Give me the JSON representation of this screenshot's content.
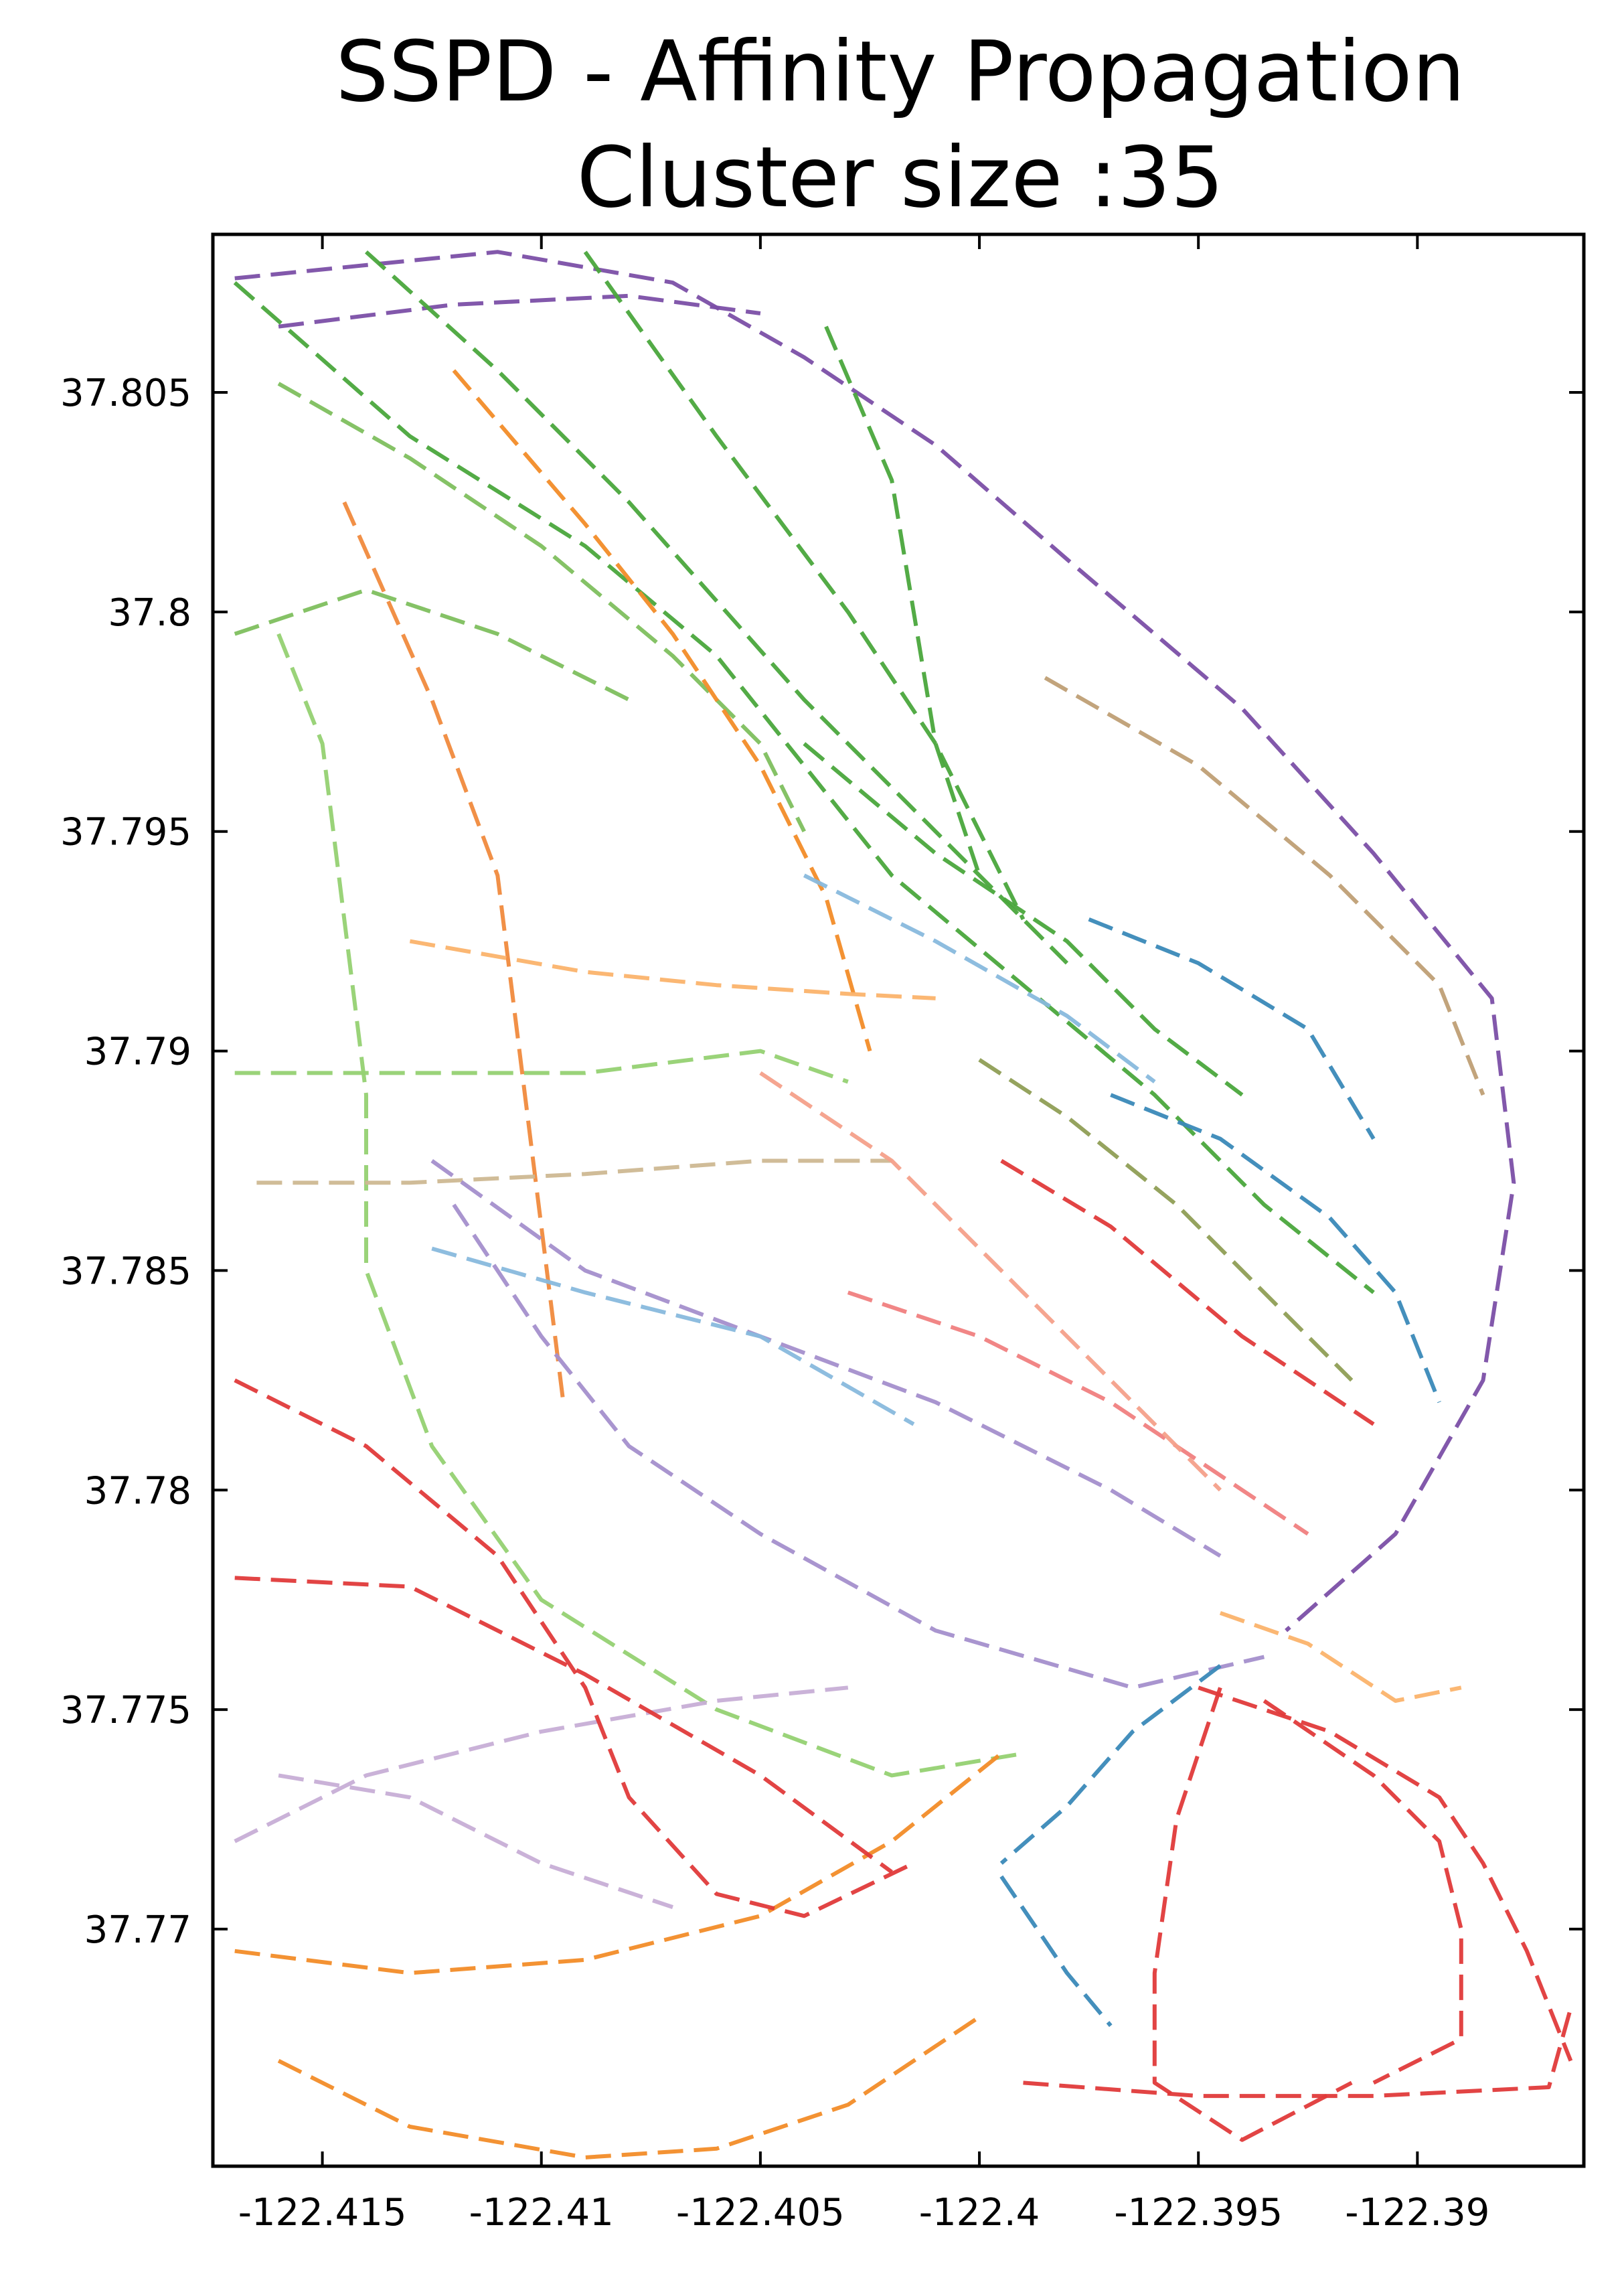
{
  "chart_data": {
    "type": "line",
    "title_line1": "SSPD - Affinity Propagation",
    "title_line2": "Cluster size :35",
    "xlabel": "",
    "ylabel": "",
    "xlim": [
      -122.4175,
      -122.3862
    ],
    "ylim": [
      37.7646,
      37.8086
    ],
    "x_ticks": [
      -122.415,
      -122.41,
      -122.405,
      -122.4,
      -122.395,
      -122.39
    ],
    "x_tick_labels": [
      "-122.415",
      "-122.41",
      "-122.405",
      "-122.4",
      "-122.395",
      "-122.39"
    ],
    "y_ticks": [
      37.77,
      37.775,
      37.78,
      37.785,
      37.79,
      37.795,
      37.8,
      37.805
    ],
    "y_tick_labels": [
      "37.77",
      "37.775",
      "37.78",
      "37.785",
      "37.79",
      "37.795",
      "37.8",
      "37.805"
    ],
    "grid": false,
    "legend": "none",
    "line_style": "dashed",
    "series": [
      {
        "color": "#7b4fa6",
        "points": [
          [
            -122.417,
            37.8076
          ],
          [
            -122.411,
            37.8082
          ],
          [
            -122.407,
            37.8075
          ],
          [
            -122.404,
            37.8058
          ],
          [
            -122.401,
            37.8038
          ],
          [
            -122.398,
            37.8012
          ],
          [
            -122.394,
            37.7978
          ],
          [
            -122.391,
            37.7945
          ],
          [
            -122.3883,
            37.7912
          ],
          [
            -122.3878,
            37.787
          ],
          [
            -122.3885,
            37.7825
          ],
          [
            -122.3905,
            37.779
          ],
          [
            -122.393,
            37.7768
          ]
        ]
      },
      {
        "color": "#7b4fa6",
        "points": [
          [
            -122.416,
            37.8065
          ],
          [
            -122.412,
            37.807
          ],
          [
            -122.408,
            37.8072
          ],
          [
            -122.405,
            37.8068
          ]
        ]
      },
      {
        "color": "#4aa63c",
        "points": [
          [
            -122.417,
            37.8075
          ],
          [
            -122.413,
            37.804
          ],
          [
            -122.409,
            37.8015
          ],
          [
            -122.406,
            37.799
          ],
          [
            -122.404,
            37.7965
          ],
          [
            -122.402,
            37.794
          ],
          [
            -122.399,
            37.7915
          ],
          [
            -122.396,
            37.789
          ],
          [
            -122.3935,
            37.7865
          ],
          [
            -122.391,
            37.7845
          ]
        ]
      },
      {
        "color": "#4aa63c",
        "points": [
          [
            -122.414,
            37.8082
          ],
          [
            -122.411,
            37.8055
          ],
          [
            -122.408,
            37.8025
          ],
          [
            -122.404,
            37.798
          ],
          [
            -122.401,
            37.795
          ],
          [
            -122.398,
            37.792
          ]
        ]
      },
      {
        "color": "#4aa63c",
        "points": [
          [
            -122.409,
            37.8082
          ],
          [
            -122.406,
            37.804
          ],
          [
            -122.403,
            37.8
          ],
          [
            -122.401,
            37.797
          ],
          [
            -122.399,
            37.793
          ]
        ]
      },
      {
        "color": "#4aa63c",
        "points": [
          [
            -122.4035,
            37.8065
          ],
          [
            -122.402,
            37.803
          ],
          [
            -122.4015,
            37.8
          ],
          [
            -122.401,
            37.797
          ],
          [
            -122.4,
            37.794
          ]
        ]
      },
      {
        "color": "#4aa63c",
        "points": [
          [
            -122.404,
            37.797
          ],
          [
            -122.401,
            37.7945
          ],
          [
            -122.398,
            37.7925
          ],
          [
            -122.396,
            37.7905
          ],
          [
            -122.394,
            37.789
          ]
        ]
      },
      {
        "color": "#7ebf5e",
        "points": [
          [
            -122.416,
            37.8052
          ],
          [
            -122.413,
            37.8035
          ],
          [
            -122.41,
            37.8015
          ],
          [
            -122.407,
            37.799
          ],
          [
            -122.405,
            37.797
          ],
          [
            -122.404,
            37.795
          ]
        ]
      },
      {
        "color": "#7ebf5e",
        "points": [
          [
            -122.417,
            37.7995
          ],
          [
            -122.414,
            37.8005
          ],
          [
            -122.411,
            37.7995
          ],
          [
            -122.408,
            37.798
          ]
        ]
      },
      {
        "color": "#95d172",
        "points": [
          [
            -122.416,
            37.7995
          ],
          [
            -122.415,
            37.797
          ],
          [
            -122.4145,
            37.793
          ],
          [
            -122.414,
            37.789
          ],
          [
            -122.414,
            37.785
          ],
          [
            -122.4125,
            37.781
          ],
          [
            -122.41,
            37.7775
          ],
          [
            -122.406,
            37.775
          ],
          [
            -122.402,
            37.7735
          ],
          [
            -122.399,
            37.774
          ]
        ]
      },
      {
        "color": "#95d172",
        "points": [
          [
            -122.417,
            37.7895
          ],
          [
            -122.413,
            37.7895
          ],
          [
            -122.409,
            37.7895
          ],
          [
            -122.405,
            37.79
          ],
          [
            -122.403,
            37.7893
          ]
        ]
      },
      {
        "color": "#f08a3d",
        "points": [
          [
            -122.4145,
            37.8025
          ],
          [
            -122.4125,
            37.798
          ],
          [
            -122.411,
            37.794
          ],
          [
            -122.4105,
            37.79
          ],
          [
            -122.41,
            37.786
          ],
          [
            -122.4095,
            37.782
          ]
        ]
      },
      {
        "color": "#f28c28",
        "points": [
          [
            -122.412,
            37.8055
          ],
          [
            -122.409,
            37.802
          ],
          [
            -122.407,
            37.7995
          ],
          [
            -122.405,
            37.7965
          ],
          [
            -122.4035,
            37.7935
          ],
          [
            -122.4025,
            37.79
          ]
        ]
      },
      {
        "color": "#f28c28",
        "points": [
          [
            -122.417,
            37.7695
          ],
          [
            -122.413,
            37.769
          ],
          [
            -122.409,
            37.7693
          ],
          [
            -122.405,
            37.7703
          ],
          [
            -122.402,
            37.772
          ],
          [
            -122.3995,
            37.774
          ]
        ]
      },
      {
        "color": "#f28c28",
        "points": [
          [
            -122.416,
            37.767
          ],
          [
            -122.413,
            37.7655
          ],
          [
            -122.409,
            37.7648
          ],
          [
            -122.406,
            37.765
          ],
          [
            -122.403,
            37.766
          ],
          [
            -122.4,
            37.768
          ]
        ]
      },
      {
        "color": "#fbb36c",
        "points": [
          [
            -122.413,
            37.7925
          ],
          [
            -122.409,
            37.7918
          ],
          [
            -122.406,
            37.7915
          ],
          [
            -122.403,
            37.7913
          ],
          [
            -122.401,
            37.7912
          ]
        ]
      },
      {
        "color": "#cdb892",
        "points": [
          [
            -122.4165,
            37.787
          ],
          [
            -122.413,
            37.787
          ],
          [
            -122.409,
            37.7872
          ],
          [
            -122.405,
            37.7875
          ],
          [
            -122.402,
            37.7875
          ]
        ]
      },
      {
        "color": "#a48fcc",
        "points": [
          [
            -122.412,
            37.7865
          ],
          [
            -122.41,
            37.7835
          ],
          [
            -122.408,
            37.781
          ],
          [
            -122.405,
            37.779
          ],
          [
            -122.401,
            37.7768
          ],
          [
            -122.3965,
            37.7755
          ],
          [
            -122.3935,
            37.7762
          ]
        ]
      },
      {
        "color": "#a48fcc",
        "points": [
          [
            -122.4125,
            37.7875
          ],
          [
            -122.409,
            37.785
          ],
          [
            -122.405,
            37.7835
          ],
          [
            -122.401,
            37.782
          ],
          [
            -122.397,
            37.78
          ],
          [
            -122.3945,
            37.7785
          ]
        ]
      },
      {
        "color": "#c7aed6",
        "points": [
          [
            -122.417,
            37.772
          ],
          [
            -122.414,
            37.7735
          ],
          [
            -122.41,
            37.7745
          ],
          [
            -122.406,
            37.7752
          ],
          [
            -122.403,
            37.7755
          ]
        ]
      },
      {
        "color": "#c7aed6",
        "points": [
          [
            -122.416,
            37.7735
          ],
          [
            -122.413,
            37.773
          ],
          [
            -122.41,
            37.7715
          ],
          [
            -122.407,
            37.7705
          ]
        ]
      },
      {
        "color": "#e03a3a",
        "points": [
          [
            -122.417,
            37.7825
          ],
          [
            -122.414,
            37.781
          ],
          [
            -122.411,
            37.7785
          ],
          [
            -122.409,
            37.7755
          ],
          [
            -122.408,
            37.773
          ],
          [
            -122.406,
            37.7708
          ],
          [
            -122.404,
            37.7703
          ],
          [
            -122.4015,
            37.7715
          ]
        ]
      },
      {
        "color": "#e03a3a",
        "points": [
          [
            -122.417,
            37.778
          ],
          [
            -122.413,
            37.7778
          ],
          [
            -122.409,
            37.7758
          ],
          [
            -122.405,
            37.7735
          ],
          [
            -122.402,
            37.7713
          ]
        ]
      },
      {
        "color": "#e03a3a",
        "points": [
          [
            -122.3995,
            37.7875
          ],
          [
            -122.397,
            37.786
          ],
          [
            -122.394,
            37.7835
          ],
          [
            -122.391,
            37.7815
          ]
        ]
      },
      {
        "color": "#e03a3a",
        "points": [
          [
            -122.395,
            37.7755
          ],
          [
            -122.392,
            37.7745
          ],
          [
            -122.3895,
            37.773
          ],
          [
            -122.3885,
            37.7715
          ],
          [
            -122.3875,
            37.7695
          ],
          [
            -122.3865,
            37.767
          ]
        ]
      },
      {
        "color": "#e03a3a",
        "points": [
          [
            -122.3945,
            37.7755
          ],
          [
            -122.3955,
            37.7725
          ],
          [
            -122.396,
            37.769
          ],
          [
            -122.396,
            37.7665
          ],
          [
            -122.394,
            37.7652
          ],
          [
            -122.3915,
            37.7665
          ]
        ]
      },
      {
        "color": "#e03a3a",
        "points": [
          [
            -122.3935,
            37.7752
          ],
          [
            -122.391,
            37.7735
          ],
          [
            -122.3895,
            37.772
          ],
          [
            -122.389,
            37.77
          ],
          [
            -122.389,
            37.7675
          ],
          [
            -122.391,
            37.7665
          ]
        ]
      },
      {
        "color": "#e03a3a",
        "points": [
          [
            -122.399,
            37.7665
          ],
          [
            -122.395,
            37.7662
          ],
          [
            -122.391,
            37.7662
          ],
          [
            -122.387,
            37.7664
          ],
          [
            -122.3865,
            37.7682
          ]
        ]
      },
      {
        "color": "#3a89b8",
        "points": [
          [
            -122.397,
            37.789
          ],
          [
            -122.3945,
            37.788
          ],
          [
            -122.392,
            37.7862
          ],
          [
            -122.3905,
            37.7845
          ],
          [
            -122.3895,
            37.782
          ]
        ]
      },
      {
        "color": "#3a89b8",
        "points": [
          [
            -122.3975,
            37.793
          ],
          [
            -122.395,
            37.792
          ],
          [
            -122.3925,
            37.7905
          ],
          [
            -122.391,
            37.788
          ]
        ]
      },
      {
        "color": "#3a89b8",
        "points": [
          [
            -122.3945,
            37.776
          ],
          [
            -122.3965,
            37.7745
          ],
          [
            -122.398,
            37.7728
          ],
          [
            -122.3995,
            37.7715
          ]
        ]
      },
      {
        "color": "#3a89b8",
        "points": [
          [
            -122.3995,
            37.7712
          ],
          [
            -122.398,
            37.769
          ],
          [
            -122.397,
            37.7678
          ]
        ]
      },
      {
        "color": "#bf9f75",
        "points": [
          [
            -122.3985,
            37.7985
          ],
          [
            -122.395,
            37.7965
          ],
          [
            -122.392,
            37.794
          ],
          [
            -122.3895,
            37.7915
          ],
          [
            -122.3885,
            37.789
          ]
        ]
      },
      {
        "color": "#f08080",
        "points": [
          [
            -122.403,
            37.7845
          ],
          [
            -122.4,
            37.7835
          ],
          [
            -122.397,
            37.782
          ],
          [
            -122.394,
            37.78
          ],
          [
            -122.3925,
            37.779
          ]
        ]
      },
      {
        "color": "#f4a08a",
        "points": [
          [
            -122.405,
            37.7895
          ],
          [
            -122.402,
            37.7875
          ],
          [
            -122.399,
            37.7845
          ],
          [
            -122.3965,
            37.782
          ],
          [
            -122.3945,
            37.78
          ]
        ]
      },
      {
        "color": "#88b9dd",
        "points": [
          [
            -122.404,
            37.794
          ],
          [
            -122.401,
            37.7925
          ],
          [
            -122.398,
            37.7908
          ],
          [
            -122.396,
            37.7893
          ]
        ]
      },
      {
        "color": "#88b9dd",
        "points": [
          [
            -122.4125,
            37.7855
          ],
          [
            -122.409,
            37.7845
          ],
          [
            -122.405,
            37.7835
          ],
          [
            -122.4015,
            37.7815
          ]
        ]
      },
      {
        "color": "#8f9e55",
        "points": [
          [
            -122.4,
            37.7898
          ],
          [
            -122.398,
            37.7885
          ],
          [
            -122.3955,
            37.7865
          ],
          [
            -122.393,
            37.784
          ],
          [
            -122.3915,
            37.7825
          ]
        ]
      },
      {
        "color": "#fbb36c",
        "points": [
          [
            -122.3945,
            37.7772
          ],
          [
            -122.3925,
            37.7765
          ],
          [
            -122.3905,
            37.7752
          ],
          [
            -122.389,
            37.7755
          ]
        ]
      }
    ]
  }
}
